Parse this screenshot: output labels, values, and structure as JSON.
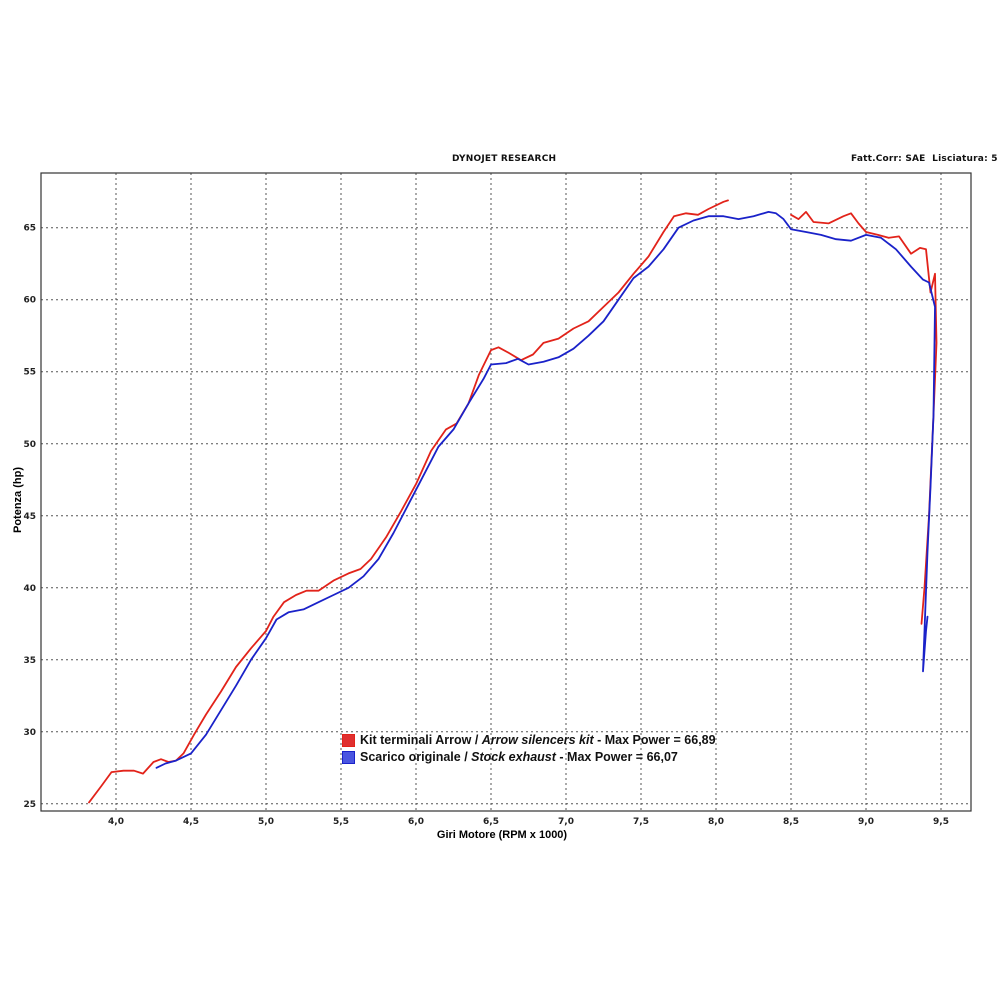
{
  "header": {
    "left": "DYNOJET RESEARCH",
    "right": "Fatt.Corr: SAE  Lisciatura: 5"
  },
  "chart_data": {
    "type": "line",
    "xlabel": "Giri Motore (RPM x 1000)",
    "ylabel": "Potenza (hp)",
    "xlim": [
      3.5,
      9.7
    ],
    "ylim": [
      24.5,
      68.8
    ],
    "x_ticks": [
      "4,0",
      "4,5",
      "5,0",
      "5,5",
      "6,0",
      "6,5",
      "7,0",
      "7,5",
      "8,0",
      "8,5",
      "9,0",
      "9,5"
    ],
    "y_ticks": [
      "25",
      "30",
      "35",
      "40",
      "45",
      "50",
      "55",
      "60",
      "65"
    ],
    "grid": true,
    "legend_position": "lower-center",
    "series": [
      {
        "name": "Kit terminali Arrow / Arrow silencers kit",
        "name_main": "Kit terminali Arrow / ",
        "name_italic": "Arrow silencers kit",
        "suffix": " - Max Power = 66,89",
        "color": "#e2231a",
        "swatch": "#e03030",
        "points": [
          [
            3.82,
            25.1
          ],
          [
            3.9,
            26.2
          ],
          [
            3.97,
            27.2
          ],
          [
            4.05,
            27.3
          ],
          [
            4.12,
            27.3
          ],
          [
            4.18,
            27.1
          ],
          [
            4.25,
            27.9
          ],
          [
            4.3,
            28.1
          ],
          [
            4.35,
            27.9
          ],
          [
            4.4,
            28.0
          ],
          [
            4.45,
            28.5
          ],
          [
            4.52,
            29.8
          ],
          [
            4.6,
            31.2
          ],
          [
            4.7,
            32.8
          ],
          [
            4.8,
            34.5
          ],
          [
            4.9,
            35.8
          ],
          [
            5.0,
            37.0
          ],
          [
            5.05,
            38.0
          ],
          [
            5.12,
            39.0
          ],
          [
            5.2,
            39.5
          ],
          [
            5.27,
            39.8
          ],
          [
            5.35,
            39.8
          ],
          [
            5.45,
            40.5
          ],
          [
            5.55,
            41.0
          ],
          [
            5.63,
            41.3
          ],
          [
            5.7,
            42.0
          ],
          [
            5.8,
            43.5
          ],
          [
            5.9,
            45.3
          ],
          [
            6.0,
            47.2
          ],
          [
            6.1,
            49.5
          ],
          [
            6.2,
            51.0
          ],
          [
            6.27,
            51.4
          ],
          [
            6.35,
            52.8
          ],
          [
            6.42,
            54.8
          ],
          [
            6.5,
            56.5
          ],
          [
            6.55,
            56.7
          ],
          [
            6.62,
            56.3
          ],
          [
            6.7,
            55.8
          ],
          [
            6.78,
            56.2
          ],
          [
            6.85,
            57.0
          ],
          [
            6.95,
            57.3
          ],
          [
            7.05,
            58.0
          ],
          [
            7.15,
            58.5
          ],
          [
            7.25,
            59.5
          ],
          [
            7.35,
            60.5
          ],
          [
            7.45,
            61.8
          ],
          [
            7.55,
            63.0
          ],
          [
            7.65,
            64.7
          ],
          [
            7.72,
            65.8
          ],
          [
            7.8,
            66.0
          ],
          [
            7.88,
            65.9
          ],
          [
            7.95,
            66.3
          ],
          [
            8.05,
            66.8
          ],
          [
            8.08,
            66.9
          ],
          null,
          [
            8.5,
            65.9
          ],
          [
            8.55,
            65.6
          ],
          [
            8.6,
            66.1
          ],
          [
            8.65,
            65.4
          ],
          [
            8.75,
            65.3
          ],
          [
            8.85,
            65.8
          ],
          [
            8.9,
            66.0
          ],
          [
            8.95,
            65.3
          ],
          [
            9.0,
            64.7
          ],
          [
            9.08,
            64.5
          ],
          [
            9.15,
            64.3
          ],
          [
            9.22,
            64.4
          ],
          [
            9.3,
            63.2
          ],
          [
            9.36,
            63.6
          ],
          [
            9.4,
            63.5
          ],
          [
            9.43,
            60.5
          ],
          [
            9.46,
            61.8
          ],
          [
            9.47,
            57.0
          ],
          [
            9.45,
            52.0
          ],
          [
            9.42,
            45.0
          ],
          [
            9.39,
            40.0
          ],
          [
            9.37,
            37.5
          ]
        ]
      },
      {
        "name": "Scarico originale / Stock exhaust",
        "name_main": "Scarico originale / ",
        "name_italic": "Stock exhaust",
        "suffix": " - Max Power = 66,07",
        "color": "#1a22c9",
        "swatch": "#4a55e0",
        "points": [
          [
            4.27,
            27.5
          ],
          [
            4.33,
            27.8
          ],
          [
            4.4,
            28.0
          ],
          [
            4.5,
            28.5
          ],
          [
            4.6,
            29.8
          ],
          [
            4.7,
            31.5
          ],
          [
            4.8,
            33.2
          ],
          [
            4.9,
            35.0
          ],
          [
            5.0,
            36.5
          ],
          [
            5.07,
            37.8
          ],
          [
            5.15,
            38.3
          ],
          [
            5.25,
            38.5
          ],
          [
            5.35,
            39.0
          ],
          [
            5.45,
            39.5
          ],
          [
            5.55,
            40.0
          ],
          [
            5.65,
            40.8
          ],
          [
            5.75,
            42.0
          ],
          [
            5.85,
            43.8
          ],
          [
            5.95,
            45.8
          ],
          [
            6.05,
            47.8
          ],
          [
            6.15,
            49.8
          ],
          [
            6.25,
            51.0
          ],
          [
            6.35,
            52.8
          ],
          [
            6.45,
            54.5
          ],
          [
            6.5,
            55.5
          ],
          [
            6.6,
            55.6
          ],
          [
            6.68,
            55.9
          ],
          [
            6.75,
            55.5
          ],
          [
            6.85,
            55.7
          ],
          [
            6.95,
            56.0
          ],
          [
            7.05,
            56.6
          ],
          [
            7.15,
            57.5
          ],
          [
            7.25,
            58.5
          ],
          [
            7.35,
            60.0
          ],
          [
            7.45,
            61.5
          ],
          [
            7.55,
            62.3
          ],
          [
            7.65,
            63.5
          ],
          [
            7.75,
            65.0
          ],
          [
            7.85,
            65.5
          ],
          [
            7.95,
            65.8
          ],
          [
            8.05,
            65.8
          ],
          [
            8.15,
            65.6
          ],
          [
            8.25,
            65.8
          ],
          [
            8.35,
            66.1
          ],
          [
            8.4,
            66.0
          ],
          [
            8.45,
            65.6
          ],
          [
            8.5,
            64.9
          ],
          [
            8.6,
            64.7
          ],
          [
            8.7,
            64.5
          ],
          [
            8.8,
            64.2
          ],
          [
            8.9,
            64.1
          ],
          [
            9.0,
            64.5
          ],
          [
            9.1,
            64.3
          ],
          [
            9.2,
            63.5
          ],
          [
            9.3,
            62.3
          ],
          [
            9.38,
            61.4
          ],
          [
            9.42,
            61.2
          ],
          [
            9.46,
            59.5
          ],
          [
            9.45,
            52.0
          ],
          [
            9.43,
            47.0
          ],
          [
            9.41,
            42.5
          ],
          [
            9.39,
            37.0
          ],
          [
            9.38,
            34.2
          ],
          [
            9.4,
            37.0
          ],
          [
            9.41,
            38.0
          ]
        ]
      }
    ]
  }
}
